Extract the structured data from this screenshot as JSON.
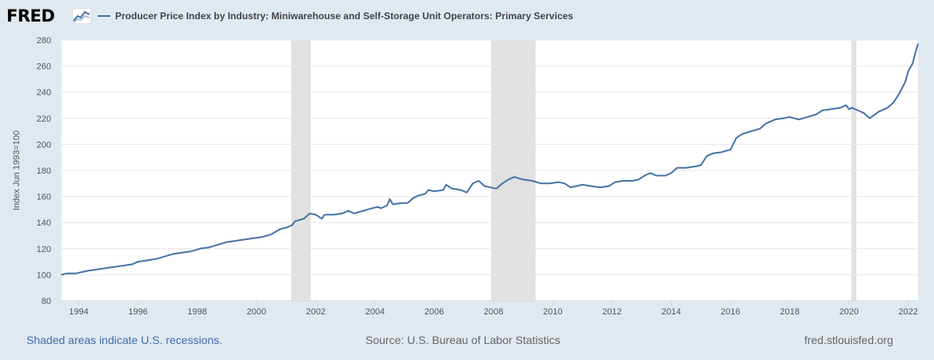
{
  "header": {
    "logo_text": "FRED",
    "logo_icon": "fred-mini-graph-icon"
  },
  "footer": {
    "recession_note": "Shaded areas indicate U.S. recessions.",
    "source": "Source: U.S. Bureau of Labor Statistics",
    "site": "fred.stlouisfed.org"
  },
  "colors": {
    "background": "#e1e9f0",
    "plot_background": "#ffffff",
    "series": "#4572a7",
    "recession": "#e1e1e1",
    "grid": "#e6e6e6"
  },
  "chart_data": {
    "type": "line",
    "title": "",
    "xlabel": "",
    "ylabel": "Index Jun 1993=100",
    "ylim": [
      80,
      280
    ],
    "xlim": [
      1993.42,
      2022.33
    ],
    "yticks": [
      80,
      100,
      120,
      140,
      160,
      180,
      200,
      220,
      240,
      260,
      280
    ],
    "xticks": [
      1994,
      1996,
      1998,
      2000,
      2002,
      2004,
      2006,
      2008,
      2010,
      2012,
      2014,
      2016,
      2018,
      2020,
      2022
    ],
    "grid": true,
    "legend_position": "top-left",
    "recessions": [
      [
        2001.17,
        2001.83
      ],
      [
        2007.92,
        2009.42
      ],
      [
        2020.08,
        2020.25
      ]
    ],
    "series": [
      {
        "name": "Producer Price Index by Industry: Miniwarehouse and Self-Storage Unit Operators: Primary Services",
        "points": [
          [
            1993.42,
            100
          ],
          [
            1993.6,
            101
          ],
          [
            1993.9,
            101
          ],
          [
            1994.1,
            102
          ],
          [
            1994.3,
            103
          ],
          [
            1994.6,
            104
          ],
          [
            1994.9,
            105
          ],
          [
            1995.2,
            106
          ],
          [
            1995.5,
            107
          ],
          [
            1995.8,
            108
          ],
          [
            1996.0,
            110
          ],
          [
            1996.3,
            111
          ],
          [
            1996.6,
            112
          ],
          [
            1996.9,
            114
          ],
          [
            1997.2,
            116
          ],
          [
            1997.5,
            117
          ],
          [
            1997.8,
            118
          ],
          [
            1998.1,
            120
          ],
          [
            1998.4,
            121
          ],
          [
            1998.7,
            123
          ],
          [
            1999.0,
            125
          ],
          [
            1999.3,
            126
          ],
          [
            1999.6,
            127
          ],
          [
            1999.9,
            128
          ],
          [
            2000.2,
            129
          ],
          [
            2000.5,
            131
          ],
          [
            2000.8,
            135
          ],
          [
            2001.0,
            136
          ],
          [
            2001.2,
            138
          ],
          [
            2001.3,
            141
          ],
          [
            2001.6,
            143
          ],
          [
            2001.8,
            147
          ],
          [
            2002.0,
            146
          ],
          [
            2002.2,
            143
          ],
          [
            2002.3,
            146
          ],
          [
            2002.6,
            146
          ],
          [
            2002.9,
            147
          ],
          [
            2003.1,
            149
          ],
          [
            2003.3,
            147
          ],
          [
            2003.6,
            149
          ],
          [
            2003.9,
            151
          ],
          [
            2004.1,
            152
          ],
          [
            2004.2,
            151
          ],
          [
            2004.4,
            153
          ],
          [
            2004.5,
            158
          ],
          [
            2004.6,
            154
          ],
          [
            2004.9,
            155
          ],
          [
            2005.1,
            155
          ],
          [
            2005.3,
            159
          ],
          [
            2005.5,
            161
          ],
          [
            2005.7,
            162
          ],
          [
            2005.8,
            165
          ],
          [
            2006.0,
            164
          ],
          [
            2006.3,
            165
          ],
          [
            2006.4,
            169
          ],
          [
            2006.6,
            166
          ],
          [
            2006.9,
            165
          ],
          [
            2007.1,
            163
          ],
          [
            2007.3,
            170
          ],
          [
            2007.5,
            172
          ],
          [
            2007.7,
            168
          ],
          [
            2007.9,
            167
          ],
          [
            2008.1,
            166
          ],
          [
            2008.3,
            170
          ],
          [
            2008.5,
            173
          ],
          [
            2008.7,
            175
          ],
          [
            2009.0,
            173
          ],
          [
            2009.3,
            172
          ],
          [
            2009.6,
            170
          ],
          [
            2009.9,
            170
          ],
          [
            2010.2,
            171
          ],
          [
            2010.4,
            170
          ],
          [
            2010.6,
            167
          ],
          [
            2010.8,
            168
          ],
          [
            2011.0,
            169
          ],
          [
            2011.3,
            168
          ],
          [
            2011.6,
            167
          ],
          [
            2011.9,
            168
          ],
          [
            2012.1,
            171
          ],
          [
            2012.4,
            172
          ],
          [
            2012.7,
            172
          ],
          [
            2012.9,
            173
          ],
          [
            2013.1,
            176
          ],
          [
            2013.3,
            178
          ],
          [
            2013.5,
            176
          ],
          [
            2013.8,
            176
          ],
          [
            2014.0,
            178
          ],
          [
            2014.2,
            182
          ],
          [
            2014.5,
            182
          ],
          [
            2014.8,
            183
          ],
          [
            2015.0,
            184
          ],
          [
            2015.2,
            191
          ],
          [
            2015.4,
            193
          ],
          [
            2015.7,
            194
          ],
          [
            2016.0,
            196
          ],
          [
            2016.2,
            205
          ],
          [
            2016.4,
            208
          ],
          [
            2016.7,
            210
          ],
          [
            2017.0,
            212
          ],
          [
            2017.2,
            216
          ],
          [
            2017.5,
            219
          ],
          [
            2017.8,
            220
          ],
          [
            2018.0,
            221
          ],
          [
            2018.3,
            219
          ],
          [
            2018.6,
            221
          ],
          [
            2018.9,
            223
          ],
          [
            2019.1,
            226
          ],
          [
            2019.4,
            227
          ],
          [
            2019.7,
            228
          ],
          [
            2019.9,
            230
          ],
          [
            2020.0,
            227
          ],
          [
            2020.1,
            228
          ],
          [
            2020.3,
            226
          ],
          [
            2020.5,
            224
          ],
          [
            2020.7,
            220
          ],
          [
            2021.0,
            225
          ],
          [
            2021.3,
            228
          ],
          [
            2021.5,
            232
          ],
          [
            2021.7,
            239
          ],
          [
            2021.9,
            248
          ],
          [
            2022.0,
            256
          ],
          [
            2022.15,
            262
          ],
          [
            2022.25,
            271
          ],
          [
            2022.33,
            277
          ]
        ]
      }
    ]
  }
}
